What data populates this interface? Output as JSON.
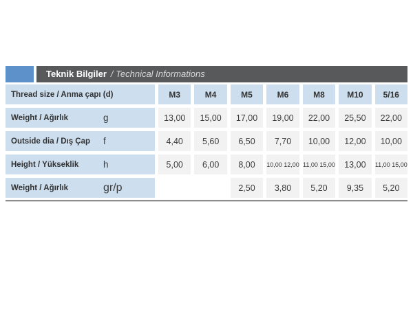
{
  "header": {
    "title_tr": "Teknik Bilgiler",
    "title_en": "/ Technical Informations"
  },
  "table": {
    "header": {
      "label": "Thread size / Anma çapı (d)",
      "columns": [
        "M3",
        "M4",
        "M5",
        "M6",
        "M8",
        "M10",
        "5/16"
      ]
    },
    "rows": [
      {
        "label": "Weight / Ağırlık",
        "unit": "g",
        "values": [
          "13,00",
          "15,00",
          "17,00",
          "19,00",
          "22,00",
          "25,50",
          "22,00"
        ]
      },
      {
        "label": "Outside dia / Dış Çap",
        "unit": "f",
        "values": [
          "4,40",
          "5,60",
          "6,50",
          "7,70",
          "10,00",
          "12,00",
          "10,00"
        ]
      },
      {
        "label": "Height / Yükseklik",
        "unit": "h",
        "values": [
          "5,00",
          "6,00",
          "8,00",
          "10,00 12,00",
          "11,00 15,00",
          "13,00",
          "11,00 15,00"
        ]
      },
      {
        "label": "Weight / Ağırlık",
        "unit": "gr/p",
        "values": [
          "",
          "",
          "2,50",
          "3,80",
          "5,20",
          "9,35",
          "5,20"
        ]
      }
    ]
  },
  "colors": {
    "accent_blue": "#5d91c9",
    "title_bar_gray": "#58595b",
    "cell_blue": "#cddeee",
    "cell_gray": "#f2f2f3",
    "rule_gray": "#8c8c8c",
    "text": "#3c3c3c"
  }
}
